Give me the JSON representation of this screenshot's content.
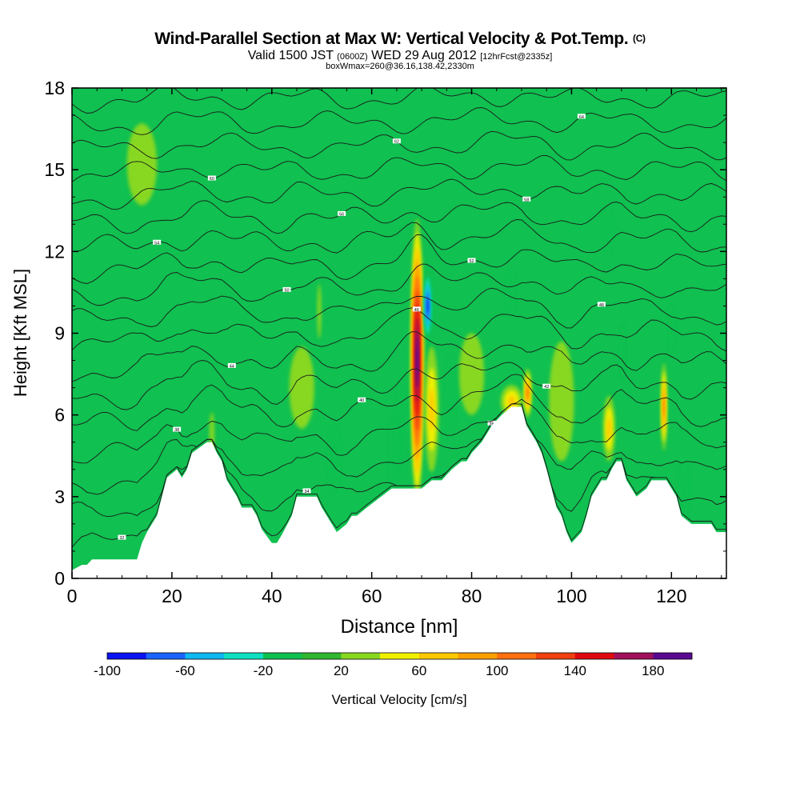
{
  "header": {
    "title_main": "Wind-Parallel Section at Max W: Vertical Velocity & Pot.Temp.",
    "title_mark": "(C)",
    "valid_prefix": "Valid 1500 JST",
    "valid_utc": "(0600Z)",
    "valid_date": "WED 29 Aug 2012",
    "forecast": "[12hrFcst@2335z]",
    "box_info": "boxWmax=260@36.16,138.42,2330m"
  },
  "chart_data": {
    "type": "heatmap",
    "xlabel": "Distance [nm]",
    "ylabel": "Height [Kft MSL]",
    "xlim": [
      0,
      131
    ],
    "ylim": [
      0,
      18
    ],
    "x_ticks": [
      0,
      20,
      40,
      60,
      80,
      100,
      120
    ],
    "y_ticks": [
      0,
      3,
      6,
      9,
      12,
      15,
      18
    ],
    "colorbar": {
      "label": "Vertical Velocity [cm/s]",
      "min": -100,
      "max": 200,
      "step": 20,
      "tick_values": [
        -100,
        -60,
        -20,
        20,
        60,
        100,
        140,
        180
      ],
      "colors": [
        "#0a14f0",
        "#1a64ff",
        "#10b8f0",
        "#10e0c0",
        "#10c050",
        "#30b830",
        "#88d820",
        "#f0f000",
        "#ffc800",
        "#ffa000",
        "#ff7010",
        "#f04010",
        "#e00810",
        "#a0105a",
        "#5a0a90"
      ]
    },
    "terrain": {
      "x": [
        0,
        2,
        3,
        4,
        13,
        14,
        15,
        17,
        18,
        19,
        21,
        22,
        23,
        24,
        27,
        28,
        29,
        30,
        31,
        33,
        34,
        36,
        37,
        38,
        40,
        41,
        42,
        44,
        45,
        46,
        47,
        49,
        50,
        51,
        52,
        53,
        55,
        56,
        57,
        59,
        64,
        65,
        67,
        70,
        72,
        74,
        76,
        78,
        79,
        80,
        82,
        83,
        84,
        86,
        88,
        89,
        90,
        91,
        92,
        93,
        94,
        95,
        96,
        97,
        98,
        99,
        100,
        102,
        103,
        104,
        105,
        106,
        107,
        108,
        109,
        110,
        111,
        112,
        113,
        115,
        116,
        117,
        119,
        121,
        122,
        124,
        126,
        128,
        129,
        131
      ],
      "height": [
        0.3,
        0.5,
        0.5,
        0.7,
        0.7,
        1.3,
        1.7,
        2.3,
        3.0,
        3.7,
        4.0,
        3.7,
        4.0,
        4.6,
        5.0,
        5.0,
        4.6,
        4.3,
        3.6,
        3.0,
        2.6,
        2.6,
        2.3,
        1.8,
        1.3,
        1.3,
        1.6,
        2.3,
        3.0,
        3.0,
        3.0,
        3.0,
        2.6,
        2.3,
        2.0,
        1.7,
        2.0,
        2.3,
        2.3,
        2.6,
        3.3,
        3.3,
        3.3,
        3.3,
        3.6,
        3.6,
        4.0,
        4.3,
        4.3,
        4.6,
        5.0,
        5.3,
        5.6,
        6.0,
        6.3,
        6.3,
        6.3,
        5.6,
        5.3,
        5.0,
        4.6,
        4.0,
        3.3,
        2.6,
        2.3,
        1.7,
        1.3,
        1.7,
        2.3,
        3.0,
        3.3,
        3.6,
        3.6,
        4.0,
        4.3,
        4.3,
        3.6,
        3.3,
        3.0,
        3.3,
        3.6,
        3.6,
        3.6,
        3.0,
        2.3,
        2.0,
        2.0,
        2.0,
        1.7,
        1.7
      ]
    },
    "w_features": [
      {
        "x": 69.1,
        "y": 8.0,
        "rx": 1.3,
        "ry": 5.2,
        "w": 200
      },
      {
        "x": 71.2,
        "y": 10.0,
        "rx": 0.8,
        "ry": 1.3,
        "w": -100
      },
      {
        "x": 72.0,
        "y": 6.2,
        "rx": 1.4,
        "ry": 2.3,
        "w": 60
      },
      {
        "x": 66.0,
        "y": 5.5,
        "rx": 1.2,
        "ry": 1.8,
        "w": -20
      },
      {
        "x": 52.5,
        "y": 4.4,
        "rx": 1.3,
        "ry": 1.2,
        "w": -20
      },
      {
        "x": 64.5,
        "y": 4.6,
        "rx": 1.0,
        "ry": 1.3,
        "w": -20
      },
      {
        "x": 75.8,
        "y": 6.7,
        "rx": 1.0,
        "ry": 1.5,
        "w": -20
      },
      {
        "x": 88.0,
        "y": 6.5,
        "rx": 2.2,
        "ry": 0.6,
        "w": 60
      },
      {
        "x": 91.2,
        "y": 6.8,
        "rx": 0.8,
        "ry": 0.9,
        "w": 100
      },
      {
        "x": 98.0,
        "y": 6.5,
        "rx": 2.5,
        "ry": 2.2,
        "w": 20
      },
      {
        "x": 107.5,
        "y": 5.5,
        "rx": 1.2,
        "ry": 1.2,
        "w": 60
      },
      {
        "x": 118.5,
        "y": 6.3,
        "rx": 0.6,
        "ry": 1.6,
        "w": 100
      },
      {
        "x": 122.5,
        "y": 3.2,
        "rx": 1.0,
        "ry": 1.0,
        "w": -20
      },
      {
        "x": 110.2,
        "y": 8.3,
        "rx": 0.6,
        "ry": 1.0,
        "w": -20
      },
      {
        "x": 87.8,
        "y": 10.5,
        "rx": 1.0,
        "ry": 0.8,
        "w": -20
      },
      {
        "x": 107.3,
        "y": 12.7,
        "rx": 1.0,
        "ry": 0.9,
        "w": -20
      },
      {
        "x": 120.0,
        "y": 9.2,
        "rx": 0.6,
        "ry": 0.9,
        "w": -20
      },
      {
        "x": 49.5,
        "y": 9.8,
        "rx": 0.4,
        "ry": 1.0,
        "w": 20
      },
      {
        "x": 28.0,
        "y": 5.3,
        "rx": 0.5,
        "ry": 0.8,
        "w": 20
      },
      {
        "x": 14.0,
        "y": 15.2,
        "rx": 3.0,
        "ry": 1.5,
        "w": 20
      },
      {
        "x": 46.0,
        "y": 7.0,
        "rx": 2.5,
        "ry": 1.5,
        "w": 20
      },
      {
        "x": 80.0,
        "y": 7.5,
        "rx": 2.5,
        "ry": 1.5,
        "w": 20
      }
    ],
    "theta_contours": [
      {
        "label": "32",
        "base": 1.0
      },
      {
        "label": "34",
        "base": 2.2
      },
      {
        "label": "36",
        "base": 3.3
      },
      {
        "label": "38",
        "base": 4.4
      },
      {
        "label": "40",
        "base": 5.5
      },
      {
        "label": "42",
        "base": 6.5
      },
      {
        "label": "44",
        "base": 7.5
      },
      {
        "label": "46",
        "base": 8.5
      },
      {
        "label": "48",
        "base": 9.4
      },
      {
        "label": "50",
        "base": 10.3
      },
      {
        "label": "52",
        "base": 11.2
      },
      {
        "label": "54",
        "base": 12.1
      },
      {
        "label": "56",
        "base": 13.0
      },
      {
        "label": "58",
        "base": 13.9
      },
      {
        "label": "60",
        "base": 14.8
      },
      {
        "label": "62",
        "base": 15.7
      },
      {
        "label": "64",
        "base": 16.6
      },
      {
        "label": "66",
        "base": 17.5
      }
    ]
  }
}
